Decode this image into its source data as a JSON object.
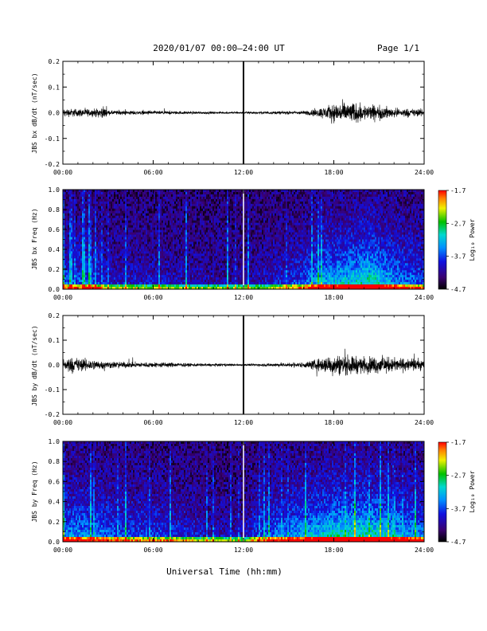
{
  "header": {
    "title": "2020/01/07  00:00–24:00 UT",
    "page": "Page 1/1"
  },
  "xaxis_label": "Universal Time (hh:mm)",
  "chart_data": [
    {
      "type": "line",
      "ylabel": "JBS bx dB/dt (nT/sec)",
      "x_range_hours": [
        0,
        24
      ],
      "x_ticks": [
        "00:00",
        "06:00",
        "12:00",
        "18:00",
        "24:00"
      ],
      "ylim": [
        -0.2,
        0.2
      ],
      "y_ticks": [
        "0.2",
        "0.1",
        "0.0",
        "-0.1",
        "-0.2"
      ],
      "marker_hour": 12,
      "envelope": [
        {
          "x": 0,
          "amp": 0.022
        },
        {
          "x": 1,
          "amp": 0.022
        },
        {
          "x": 2,
          "amp": 0.02
        },
        {
          "x": 2.8,
          "amp": 0.03
        },
        {
          "x": 3,
          "amp": 0.012
        },
        {
          "x": 4,
          "amp": 0.012
        },
        {
          "x": 6,
          "amp": 0.01
        },
        {
          "x": 8,
          "amp": 0.008
        },
        {
          "x": 10,
          "amp": 0.006
        },
        {
          "x": 12,
          "amp": 0.006
        },
        {
          "x": 14,
          "amp": 0.008
        },
        {
          "x": 16,
          "amp": 0.01
        },
        {
          "x": 17,
          "amp": 0.025
        },
        {
          "x": 18,
          "amp": 0.05
        },
        {
          "x": 19,
          "amp": 0.06
        },
        {
          "x": 20,
          "amp": 0.045
        },
        {
          "x": 21,
          "amp": 0.04
        },
        {
          "x": 22,
          "amp": 0.025
        },
        {
          "x": 24,
          "amp": 0.02
        }
      ]
    },
    {
      "type": "heatmap",
      "ylabel": "JBS bx Freq (Hz)",
      "x_range_hours": [
        0,
        24
      ],
      "x_ticks": [
        "00:00",
        "06:00",
        "12:00",
        "18:00",
        "24:00"
      ],
      "ylim": [
        0,
        1.0
      ],
      "y_ticks": [
        "1.0",
        "0.8",
        "0.6",
        "0.4",
        "0.2",
        "0.0"
      ],
      "colorbar": {
        "label": "Log₁₀ Power",
        "range": [
          -4.7,
          -1.7
        ],
        "ticks": [
          "-1.7",
          "-2.7",
          "-3.7",
          "-4.7"
        ]
      },
      "marker_hour": 12,
      "activity": [
        {
          "x": 0,
          "v": 0.35
        },
        {
          "x": 2,
          "v": 0.35
        },
        {
          "x": 3,
          "v": 0.2
        },
        {
          "x": 6,
          "v": 0.18
        },
        {
          "x": 10,
          "v": 0.12
        },
        {
          "x": 12,
          "v": 0.1
        },
        {
          "x": 14,
          "v": 0.2
        },
        {
          "x": 16,
          "v": 0.35
        },
        {
          "x": 17,
          "v": 0.55
        },
        {
          "x": 19,
          "v": 0.65
        },
        {
          "x": 20.5,
          "v": 0.75
        },
        {
          "x": 22,
          "v": 0.5
        },
        {
          "x": 24,
          "v": 0.35
        }
      ]
    },
    {
      "type": "line",
      "ylabel": "JBS by dB/dt (nT/sec)",
      "x_range_hours": [
        0,
        24
      ],
      "x_ticks": [
        "00:00",
        "06:00",
        "12:00",
        "18:00",
        "24:00"
      ],
      "ylim": [
        -0.2,
        0.2
      ],
      "y_ticks": [
        "0.2",
        "0.1",
        "0.0",
        "-0.1",
        "-0.2"
      ],
      "marker_hour": 12,
      "envelope": [
        {
          "x": 0,
          "amp": 0.045
        },
        {
          "x": 1,
          "amp": 0.04
        },
        {
          "x": 2,
          "amp": 0.03
        },
        {
          "x": 3,
          "amp": 0.02
        },
        {
          "x": 5,
          "amp": 0.015
        },
        {
          "x": 7,
          "amp": 0.015
        },
        {
          "x": 8,
          "amp": 0.01
        },
        {
          "x": 10,
          "amp": 0.008
        },
        {
          "x": 12,
          "amp": 0.006
        },
        {
          "x": 14,
          "amp": 0.01
        },
        {
          "x": 16,
          "amp": 0.015
        },
        {
          "x": 17,
          "amp": 0.035
        },
        {
          "x": 18,
          "amp": 0.06
        },
        {
          "x": 19,
          "amp": 0.055
        },
        {
          "x": 20,
          "amp": 0.045
        },
        {
          "x": 21,
          "amp": 0.05
        },
        {
          "x": 22,
          "amp": 0.04
        },
        {
          "x": 24,
          "amp": 0.03
        }
      ]
    },
    {
      "type": "heatmap",
      "ylabel": "JBS by Freq (Hz)",
      "x_range_hours": [
        0,
        24
      ],
      "x_ticks": [
        "00:00",
        "06:00",
        "12:00",
        "18:00",
        "24:00"
      ],
      "ylim": [
        0,
        1.0
      ],
      "y_ticks": [
        "1.0",
        "0.8",
        "0.6",
        "0.4",
        "0.2",
        "0.0"
      ],
      "colorbar": {
        "label": "Log₁₀ Power",
        "range": [
          -4.7,
          -1.7
        ],
        "ticks": [
          "-1.7",
          "-2.7",
          "-3.7",
          "-4.7"
        ]
      },
      "marker_hour": 12,
      "activity": [
        {
          "x": 0,
          "v": 0.5
        },
        {
          "x": 2,
          "v": 0.45
        },
        {
          "x": 4,
          "v": 0.35
        },
        {
          "x": 6,
          "v": 0.3
        },
        {
          "x": 8,
          "v": 0.25
        },
        {
          "x": 10,
          "v": 0.15
        },
        {
          "x": 12,
          "v": 0.12
        },
        {
          "x": 13,
          "v": 0.35
        },
        {
          "x": 16,
          "v": 0.55
        },
        {
          "x": 18,
          "v": 0.7
        },
        {
          "x": 20,
          "v": 0.75
        },
        {
          "x": 22,
          "v": 0.6
        },
        {
          "x": 24,
          "v": 0.45
        }
      ]
    }
  ]
}
